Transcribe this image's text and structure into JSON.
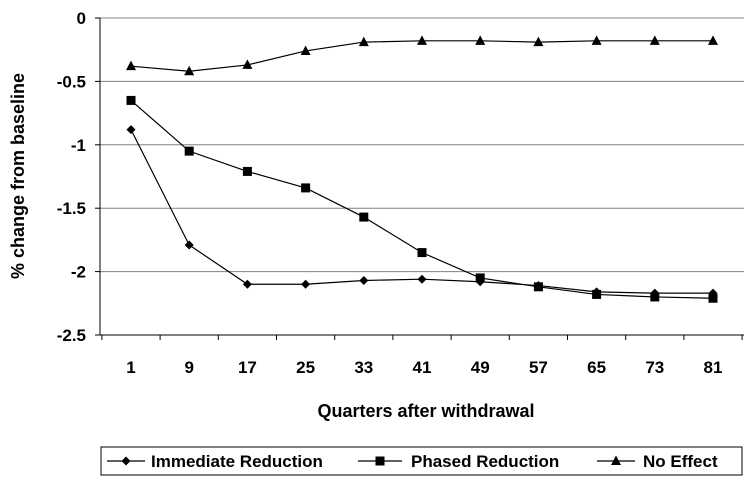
{
  "chart_data": {
    "type": "line",
    "title": "",
    "xlabel": "Quarters after withdrawal",
    "ylabel": "% change from baseline",
    "categories": [
      "1",
      "9",
      "17",
      "25",
      "33",
      "41",
      "49",
      "57",
      "65",
      "73",
      "81"
    ],
    "ylim": [
      -2.5,
      0
    ],
    "yticks": [
      0,
      -0.5,
      -1,
      -1.5,
      -2,
      -2.5
    ],
    "ytick_labels": [
      "0",
      "-0.5",
      "-1",
      "-1.5",
      "-2",
      "-2.5"
    ],
    "grid": "horizontal",
    "legend_position": "bottom",
    "series": [
      {
        "name": "Immediate Reduction",
        "marker": "diamond",
        "values": [
          -0.88,
          -1.79,
          -2.1,
          -2.1,
          -2.07,
          -2.06,
          -2.08,
          -2.11,
          -2.16,
          -2.17,
          -2.17
        ]
      },
      {
        "name": "Phased Reduction",
        "marker": "square",
        "values": [
          -0.65,
          -1.05,
          -1.21,
          -1.34,
          -1.57,
          -1.85,
          -2.05,
          -2.12,
          -2.18,
          -2.2,
          -2.21
        ]
      },
      {
        "name": "No Effect",
        "marker": "triangle",
        "values": [
          -0.38,
          -0.42,
          -0.37,
          -0.26,
          -0.19,
          -0.18,
          -0.18,
          -0.19,
          -0.18,
          -0.18,
          -0.18
        ]
      }
    ],
    "colors": {
      "line": "#000000",
      "grid": "#808080",
      "background": "#ffffff"
    }
  }
}
